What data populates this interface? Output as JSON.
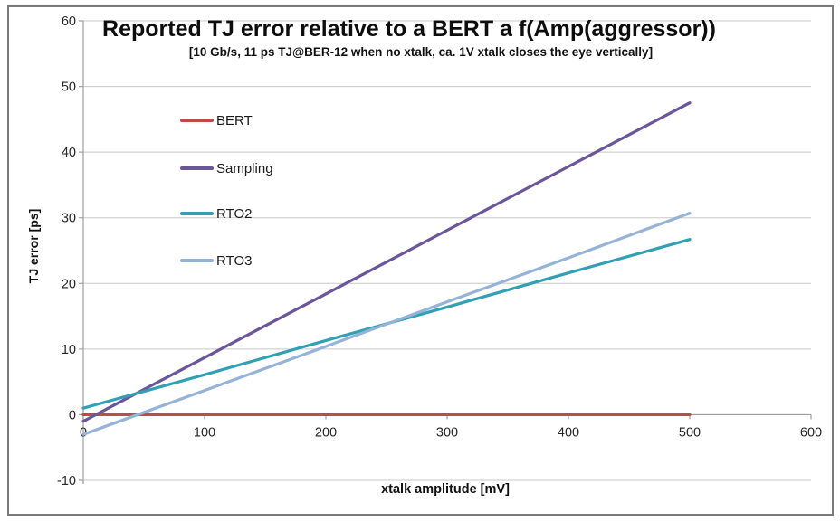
{
  "chart_data": {
    "type": "line",
    "title": "Reported TJ error relative to a BERT a f(Amp(aggressor))",
    "subtitle": "[10 Gb/s, 11 ps TJ@BER-12 when no xtalk, ca. 1V xtalk closes the eye vertically]",
    "xlabel": "xtalk amplitude [mV]",
    "ylabel": "TJ error [ps]",
    "x": [
      0,
      100,
      200,
      300,
      400,
      500
    ],
    "xlim": [
      0,
      600
    ],
    "ylim": [
      -10,
      60
    ],
    "x_ticks": [
      0,
      100,
      200,
      300,
      400,
      500,
      600
    ],
    "y_ticks": [
      60,
      50,
      40,
      30,
      20,
      10,
      0,
      -10
    ],
    "grid": "horizontal",
    "legend_position": "inside-top-left",
    "series": [
      {
        "name": "BERT",
        "color": "#be4b48",
        "values": [
          0,
          0,
          0,
          0,
          0,
          0
        ]
      },
      {
        "name": "Sampling",
        "color": "#6a5699",
        "values": [
          -1.0,
          8.7,
          18.4,
          28.1,
          37.8,
          47.5
        ]
      },
      {
        "name": "RTO2",
        "color": "#31a0b5",
        "values": [
          1.0,
          6.1,
          11.3,
          16.4,
          21.6,
          26.7
        ]
      },
      {
        "name": "RTO3",
        "color": "#95b3d7",
        "values": [
          -3.0,
          3.7,
          10.4,
          17.2,
          23.9,
          30.7
        ]
      }
    ]
  },
  "colors": {
    "gridline": "#c8c8c8",
    "axis": "#9e9e9e",
    "tick_text": "#262626",
    "frame_border": "#7b7b7b"
  }
}
